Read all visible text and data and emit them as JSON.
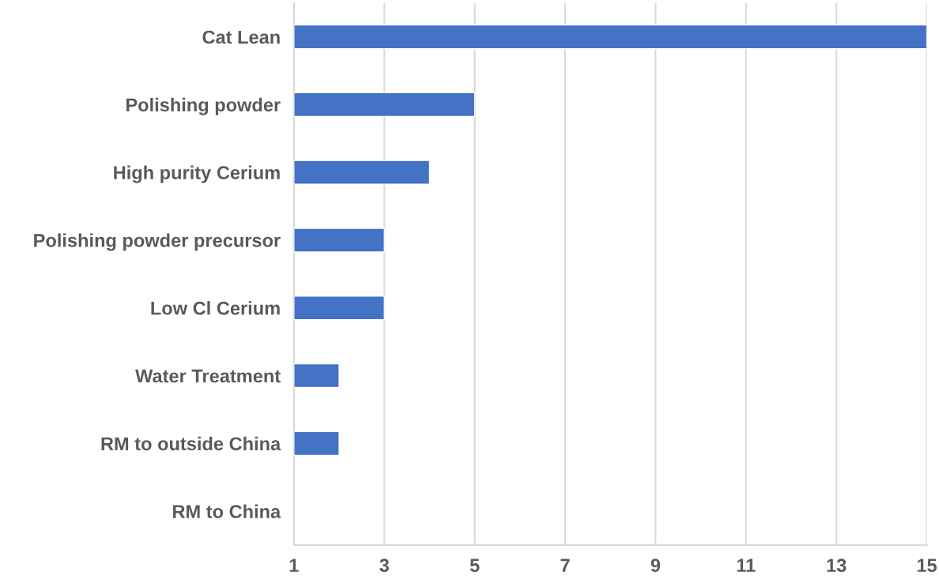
{
  "chart_data": {
    "type": "bar",
    "orientation": "horizontal",
    "categories": [
      "Cat Lean",
      "Polishing powder",
      "High purity Cerium",
      "Polishing powder precursor",
      "Low Cl Cerium",
      "Water Treatment",
      "RM to outside China",
      "RM to China"
    ],
    "values": [
      15,
      5,
      4,
      3,
      3,
      2,
      2,
      null
    ],
    "color": "#4472c4",
    "xlim": [
      1,
      15
    ],
    "xticks": [
      1,
      3,
      5,
      7,
      9,
      11,
      13,
      15
    ],
    "grid": "x",
    "legend": false
  }
}
